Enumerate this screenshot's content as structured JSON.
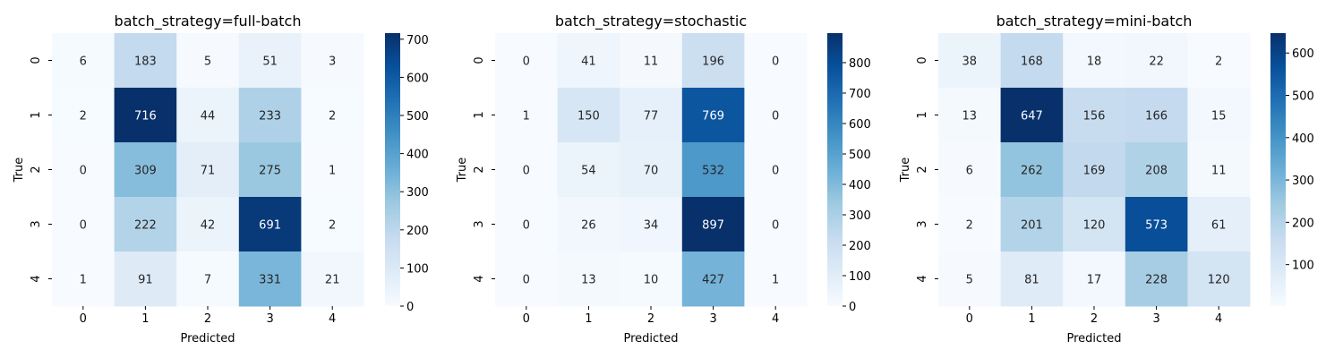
{
  "chart_data": [
    {
      "type": "heatmap",
      "title": "batch_strategy=full-batch",
      "xlabel": "Predicted",
      "ylabel": "True",
      "x_categories": [
        "0",
        "1",
        "2",
        "3",
        "4"
      ],
      "y_categories": [
        "0",
        "1",
        "2",
        "3",
        "4"
      ],
      "values": [
        [
          6,
          183,
          5,
          51,
          3
        ],
        [
          2,
          716,
          44,
          233,
          2
        ],
        [
          0,
          309,
          71,
          275,
          1
        ],
        [
          0,
          222,
          42,
          691,
          2
        ],
        [
          1,
          91,
          7,
          331,
          21
        ]
      ],
      "colorbar": {
        "range": [
          0,
          716
        ],
        "ticks": [
          0,
          100,
          200,
          300,
          400,
          500,
          600,
          700
        ]
      },
      "colormap": [
        "#f7fbff",
        "#deebf7",
        "#c6dbef",
        "#9ecae1",
        "#6baed6",
        "#4292c6",
        "#2171b5",
        "#08519c",
        "#08306b"
      ]
    },
    {
      "type": "heatmap",
      "title": "batch_strategy=stochastic",
      "xlabel": "Predicted",
      "ylabel": "True",
      "x_categories": [
        "0",
        "1",
        "2",
        "3",
        "4"
      ],
      "y_categories": [
        "0",
        "1",
        "2",
        "3",
        "4"
      ],
      "values": [
        [
          0,
          41,
          11,
          196,
          0
        ],
        [
          1,
          150,
          77,
          769,
          0
        ],
        [
          0,
          54,
          70,
          532,
          0
        ],
        [
          0,
          26,
          34,
          897,
          0
        ],
        [
          0,
          13,
          10,
          427,
          1
        ]
      ],
      "colorbar": {
        "range": [
          0,
          897
        ],
        "ticks": [
          0,
          100,
          200,
          300,
          400,
          500,
          600,
          700,
          800
        ]
      },
      "colormap": [
        "#f7fbff",
        "#deebf7",
        "#c6dbef",
        "#9ecae1",
        "#6baed6",
        "#4292c6",
        "#2171b5",
        "#08519c",
        "#08306b"
      ]
    },
    {
      "type": "heatmap",
      "title": "batch_strategy=mini-batch",
      "xlabel": "Predicted",
      "ylabel": "True",
      "x_categories": [
        "0",
        "1",
        "2",
        "3",
        "4"
      ],
      "y_categories": [
        "0",
        "1",
        "2",
        "3",
        "4"
      ],
      "values": [
        [
          38,
          168,
          18,
          22,
          2
        ],
        [
          13,
          647,
          156,
          166,
          15
        ],
        [
          6,
          262,
          169,
          208,
          11
        ],
        [
          2,
          201,
          120,
          573,
          61
        ],
        [
          5,
          81,
          17,
          228,
          120
        ]
      ],
      "colorbar": {
        "range": [
          2,
          647
        ],
        "ticks": [
          100,
          200,
          300,
          400,
          500,
          600
        ]
      },
      "colormap": [
        "#f7fbff",
        "#deebf7",
        "#c6dbef",
        "#9ecae1",
        "#6baed6",
        "#4292c6",
        "#2171b5",
        "#08519c",
        "#08306b"
      ]
    }
  ]
}
